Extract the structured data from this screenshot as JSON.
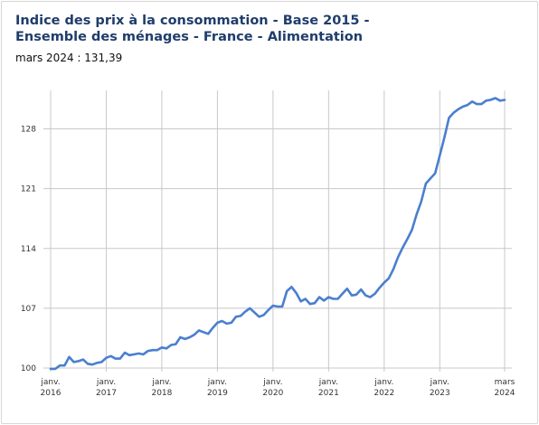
{
  "header": {
    "title": "Indice des prix à la consommation - Base 2015 - Ensemble des ménages - France - Alimentation",
    "subtitle": "mars 2024 : 131,39"
  },
  "colors": {
    "line": "#4a7fcf",
    "grid": "#c8c8c8",
    "title": "#1f3d6b"
  },
  "chart_data": {
    "type": "line",
    "title": "Indice des prix à la consommation - Base 2015 - Ensemble des ménages - France - Alimentation",
    "subtitle": "mars 2024 : 131,39",
    "xlabel": "",
    "ylabel": "",
    "ylim": [
      100,
      132.5
    ],
    "yticks": [
      100,
      107,
      114,
      121,
      128
    ],
    "ytick_labels": [
      "100",
      "107",
      "114",
      "121",
      "128"
    ],
    "xlim": [
      "2016-01",
      "2024-03"
    ],
    "xticks": [
      {
        "x": "2016-01",
        "line1": "janv.",
        "line2": "2016"
      },
      {
        "x": "2017-01",
        "line1": "janv.",
        "line2": "2017"
      },
      {
        "x": "2018-01",
        "line1": "janv.",
        "line2": "2018"
      },
      {
        "x": "2019-01",
        "line1": "janv.",
        "line2": "2019"
      },
      {
        "x": "2020-01",
        "line1": "janv.",
        "line2": "2020"
      },
      {
        "x": "2021-01",
        "line1": "janv.",
        "line2": "2021"
      },
      {
        "x": "2022-01",
        "line1": "janv.",
        "line2": "2022"
      },
      {
        "x": "2023-01",
        "line1": "janv.",
        "line2": "2023"
      },
      {
        "x": "2024-03",
        "line1": "mars",
        "line2": "2024"
      }
    ],
    "grid": "vertical-at-ticks-and-horizontal",
    "x": [
      "2016-01",
      "2016-02",
      "2016-03",
      "2016-04",
      "2016-05",
      "2016-06",
      "2016-07",
      "2016-08",
      "2016-09",
      "2016-10",
      "2016-11",
      "2016-12",
      "2017-01",
      "2017-02",
      "2017-03",
      "2017-04",
      "2017-05",
      "2017-06",
      "2017-07",
      "2017-08",
      "2017-09",
      "2017-10",
      "2017-11",
      "2017-12",
      "2018-01",
      "2018-02",
      "2018-03",
      "2018-04",
      "2018-05",
      "2018-06",
      "2018-07",
      "2018-08",
      "2018-09",
      "2018-10",
      "2018-11",
      "2018-12",
      "2019-01",
      "2019-02",
      "2019-03",
      "2019-04",
      "2019-05",
      "2019-06",
      "2019-07",
      "2019-08",
      "2019-09",
      "2019-10",
      "2019-11",
      "2019-12",
      "2020-01",
      "2020-02",
      "2020-03",
      "2020-04",
      "2020-05",
      "2020-06",
      "2020-07",
      "2020-08",
      "2020-09",
      "2020-10",
      "2020-11",
      "2020-12",
      "2021-01",
      "2021-02",
      "2021-03",
      "2021-04",
      "2021-05",
      "2021-06",
      "2021-07",
      "2021-08",
      "2021-09",
      "2021-10",
      "2021-11",
      "2021-12",
      "2022-01",
      "2022-02",
      "2022-03",
      "2022-04",
      "2022-05",
      "2022-06",
      "2022-07",
      "2022-08",
      "2022-09",
      "2022-10",
      "2022-11",
      "2022-12",
      "2023-01",
      "2023-02",
      "2023-03",
      "2023-04",
      "2023-05",
      "2023-06",
      "2023-07",
      "2023-08",
      "2023-09",
      "2023-10",
      "2023-11",
      "2023-12",
      "2024-01",
      "2024-02",
      "2024-03"
    ],
    "series": [
      {
        "values": [
          99.9,
          99.9,
          100.3,
          100.3,
          101.3,
          100.7,
          100.8,
          101.0,
          100.5,
          100.4,
          100.6,
          100.7,
          101.2,
          101.4,
          101.1,
          101.1,
          101.8,
          101.5,
          101.6,
          101.7,
          101.6,
          102.0,
          102.1,
          102.1,
          102.4,
          102.3,
          102.7,
          102.8,
          103.6,
          103.4,
          103.6,
          103.9,
          104.4,
          104.2,
          104.0,
          104.7,
          105.3,
          105.5,
          105.2,
          105.3,
          106.0,
          106.1,
          106.6,
          107.0,
          106.5,
          106.0,
          106.2,
          106.8,
          107.3,
          107.2,
          107.2,
          109.0,
          109.5,
          108.8,
          107.8,
          108.1,
          107.5,
          107.6,
          108.3,
          107.9,
          108.3,
          108.1,
          108.1,
          108.7,
          109.3,
          108.5,
          108.6,
          109.2,
          108.5,
          108.3,
          108.7,
          109.4,
          110.0,
          110.5,
          111.6,
          113.0,
          114.1,
          115.1,
          116.2,
          118.0,
          119.5,
          121.6,
          122.2,
          122.8,
          124.9,
          127.0,
          129.3,
          129.9,
          130.3,
          130.6,
          130.8,
          131.2,
          130.9,
          130.9,
          131.3,
          131.4,
          131.6,
          131.3,
          131.39
        ]
      }
    ]
  }
}
